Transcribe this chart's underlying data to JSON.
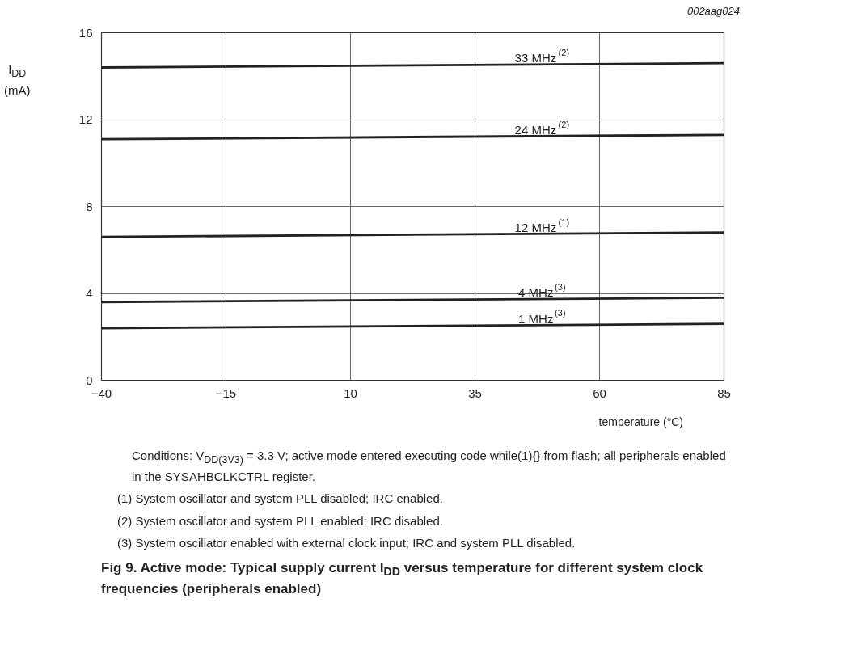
{
  "chart_data": {
    "type": "line",
    "title": "Fig 9.    Active mode: Typical supply current I$_{DD}$ versus temperature for different system clock frequencies (peripherals enabled)",
    "xlabel": "temperature (°C)",
    "ylabel": "I$_{DD}$\n(mA)",
    "x": [
      -40,
      85
    ],
    "series": [
      {
        "name": "33 MHz$^{(2)}$",
        "color": "#222222",
        "values": [
          14.4,
          14.6
        ]
      },
      {
        "name": "24 MHz$^{(2)}$",
        "color": "#222222",
        "values": [
          11.1,
          11.3
        ]
      },
      {
        "name": "12 MHz$^{(1)}$",
        "color": "#222222",
        "values": [
          6.6,
          6.8
        ]
      },
      {
        "name": "4 MHz$^{(3)}$",
        "color": "#222222",
        "values": [
          3.6,
          3.8
        ]
      },
      {
        "name": "1 MHz$^{(3)}$",
        "color": "#222222",
        "values": [
          2.4,
          2.6
        ]
      }
    ],
    "xlim": [
      -40,
      85
    ],
    "xticks": [
      -40,
      -15,
      10,
      35,
      60,
      85
    ],
    "ylim": [
      0,
      16
    ],
    "yticks": [
      0,
      4,
      8,
      12,
      16
    ],
    "grid": true,
    "marker": "none",
    "line_style": "solid",
    "annotations": [
      "002aag024",
      "Conditions: V$_{DD(3V3)}$ = 3.3 V; active mode entered executing code while(1){} from flash; all peripherals enabled in the SYSAHBCLKCTRL register.",
      "(1)  System oscillator and system PLL disabled; IRC enabled.",
      "(2)  System oscillator and system PLL enabled; IRC disabled.",
      "(3)  System oscillator enabled with external clock input; IRC and system PLL disabled."
    ]
  }
}
